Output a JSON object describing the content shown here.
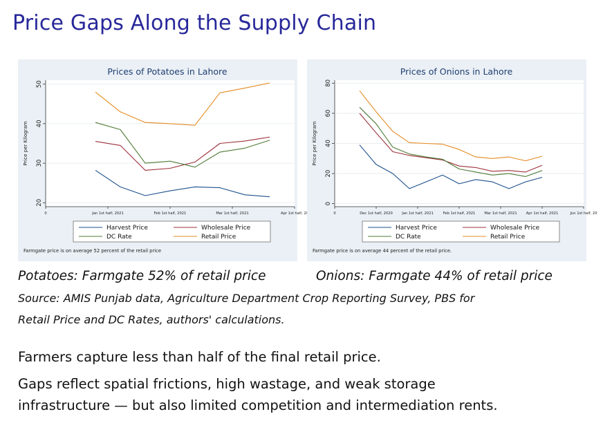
{
  "slide": {
    "title": "Price Gaps Along the Supply Chain",
    "caption_potatoes": "Potatoes: Farmgate  52% of retail price",
    "caption_onions": "Onions: Farmgate  44% of retail price",
    "source_line1": "Source: AMIS Punjab data, Agriculture Department Crop Reporting Survey, PBS for",
    "source_line2": "Retail Price and DC Rates, authors' calculations.",
    "bullet1": "Farmers capture less than half of the final retail price.",
    "bullet2": "Gaps reflect spatial frictions, high wastage, and weak storage",
    "bullet3": "infrastructure — but also limited competition and intermediation rents."
  },
  "colors": {
    "title": "#27279a",
    "chart_bg": "#eaf0f5",
    "harvest": "#1a4f8b",
    "wholesale": "#9b2f39",
    "dc": "#4e7a34",
    "retail": "#e48a1f"
  },
  "chart_data": [
    {
      "type": "line",
      "title": "Prices of Potatoes in Lahore",
      "ylabel": "Price per Kilogram",
      "xlabel": "",
      "x": [
        0.8,
        1.2,
        1.6,
        2.0,
        2.4,
        2.8,
        3.2,
        3.6,
        4.0
      ],
      "xlim": [
        0,
        4
      ],
      "ylim": [
        19,
        51
      ],
      "yticks": [
        20,
        30,
        40,
        50
      ],
      "ytick_labels": [
        "20",
        "30",
        "40",
        "50"
      ],
      "xticks": [
        0,
        1,
        2,
        3,
        4
      ],
      "xtick_labels": [
        "0",
        "Jan 1st half, 2021",
        "Feb 1st half, 2021",
        "Mar 1st half, 2021",
        "Apr 1st half, 20"
      ],
      "series": [
        {
          "name": "Harvest Price",
          "key": "harvest",
          "values": [
            28.2,
            24,
            21.8,
            23,
            24,
            23.8,
            22,
            21.5,
            null
          ]
        },
        {
          "name": "Wholesale Price",
          "key": "wholesale",
          "values": [
            35.5,
            34.5,
            28.2,
            28.7,
            30.3,
            35,
            35.6,
            36.6,
            null
          ]
        },
        {
          "name": "DC Rate",
          "key": "dc",
          "values": [
            40.3,
            38.5,
            30,
            30.5,
            29,
            32.8,
            33.8,
            35.8,
            null
          ]
        },
        {
          "name": "Retail Price",
          "key": "retail",
          "values": [
            48,
            43,
            40.3,
            40,
            39.6,
            47.8,
            49,
            50.3,
            null
          ]
        }
      ],
      "legend": [
        "Harvest Price",
        "Wholesale Price",
        "DC Rate",
        "Retail Price"
      ],
      "legend_keys": [
        "harvest",
        "wholesale",
        "dc",
        "retail"
      ],
      "note": "Farmgate price is on average 52 percent of the retail price"
    },
    {
      "type": "line",
      "title": "Prices of Onions in Lahore",
      "ylabel": "Price per Kilogram",
      "xlabel": "",
      "x": [
        0.6,
        1.0,
        1.4,
        1.8,
        2.2,
        2.6,
        3.0,
        3.4,
        3.8,
        4.2,
        4.6,
        5.0,
        5.4,
        5.8
      ],
      "xlim": [
        0,
        6
      ],
      "ylim": [
        -2,
        82
      ],
      "yticks": [
        0,
        20,
        40,
        60,
        80
      ],
      "ytick_labels": [
        "0",
        "20",
        "40",
        "60",
        "80"
      ],
      "xticks": [
        0,
        1,
        2,
        3,
        4,
        5,
        6
      ],
      "xtick_labels": [
        "0",
        "Dec 1st half, 2020",
        "Jan 1st half, 2021",
        "Feb 1st half, 2021",
        "Mar 1st half, 2021",
        "Apr 1st half, 2021",
        "Jun 1st half, 20"
      ],
      "series": [
        {
          "name": "Harvest Price",
          "key": "harvest",
          "values": [
            39,
            26,
            20,
            10,
            14.5,
            19,
            13.2,
            16,
            14.5,
            10,
            14.5,
            17.5,
            null,
            null
          ]
        },
        {
          "name": "Wholesale Price",
          "key": "wholesale",
          "values": [
            60,
            47,
            34.5,
            32,
            30.5,
            29,
            25,
            24,
            21.5,
            22,
            21,
            25.5,
            null,
            null
          ]
        },
        {
          "name": "DC Rate",
          "key": "dc",
          "values": [
            64,
            53,
            37.5,
            33,
            31,
            29.5,
            23,
            21,
            19,
            20,
            18,
            22,
            null,
            null
          ]
        },
        {
          "name": "Retail Price",
          "key": "retail",
          "values": [
            75,
            61,
            48,
            40.5,
            40,
            39.5,
            36,
            31,
            30,
            31,
            28.5,
            31.5,
            null,
            null
          ]
        }
      ],
      "legend": [
        "Harvest Price",
        "Wholesale Price",
        "DC Rate",
        "Retail Price"
      ],
      "legend_keys": [
        "harvest",
        "wholesale",
        "dc",
        "retail"
      ],
      "note": "Farmgate price is on average 44 percent of the retail price."
    }
  ]
}
